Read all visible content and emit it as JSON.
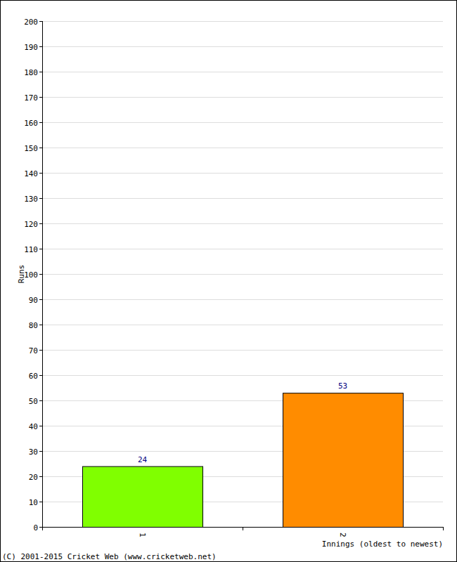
{
  "chart_data": {
    "type": "bar",
    "y_label": "Runs",
    "x_label": "Innings (oldest to newest)",
    "annotations": [
      "(C) 2001-2015 Cricket Web (www.cricketweb.net)"
    ],
    "categories": [
      "1",
      "2"
    ],
    "values": [
      24,
      53
    ],
    "colors": [
      "#80ff00",
      "#ff8c00"
    ],
    "ylim": [
      0,
      200
    ],
    "yticks": [
      0,
      10,
      20,
      30,
      40,
      50,
      60,
      70,
      80,
      90,
      100,
      110,
      120,
      130,
      140,
      150,
      160,
      170,
      180,
      190,
      200
    ],
    "grid": true,
    "data_labels": true
  }
}
